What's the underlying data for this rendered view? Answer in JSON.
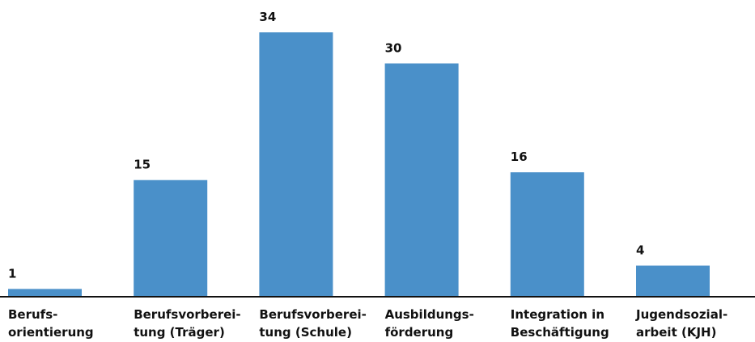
{
  "chart_data": {
    "type": "bar",
    "categories": [
      "Berufs-\norientierung",
      "Berufsvorberei-\ntung (Träger)",
      "Berufsvorberei-\ntung (Schule)",
      "Ausbildungs-\nförderung",
      "Integration in\nBeschäftigung",
      "Jugendsozial-\narbeit (KJH)"
    ],
    "values": [
      1,
      15,
      34,
      30,
      16,
      4
    ],
    "color": "#4a90c9"
  }
}
